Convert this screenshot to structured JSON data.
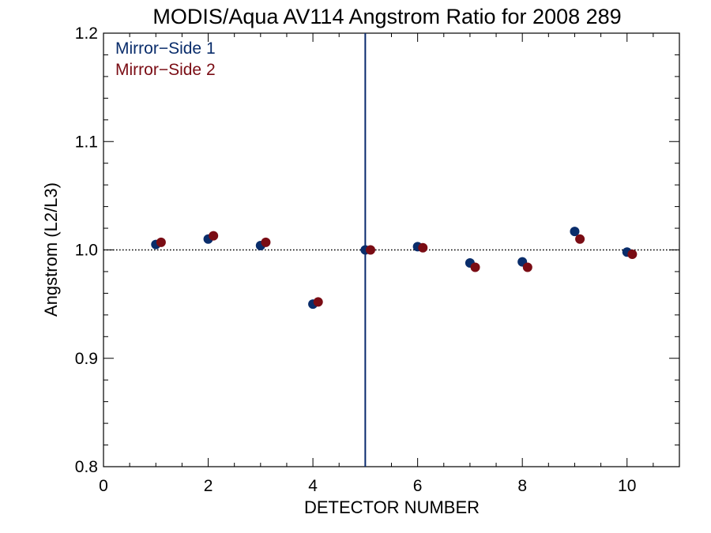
{
  "chart_data": {
    "type": "scatter",
    "title": "MODIS/Aqua AV114 Angstrom Ratio for 2008 289",
    "xlabel": "DETECTOR NUMBER",
    "ylabel": "Angstrom (L2/L3)",
    "xlim": [
      0,
      11
    ],
    "ylim": [
      0.8,
      1.2
    ],
    "x_ticks": [
      0,
      2,
      4,
      6,
      8,
      10
    ],
    "x_tick_labels": [
      "0",
      "2",
      "4",
      "6",
      "8",
      "10"
    ],
    "y_ticks": [
      0.8,
      0.9,
      1.0,
      1.1,
      1.2
    ],
    "y_tick_labels": [
      "0.8",
      "0.9",
      "1.0",
      "1.1",
      "1.2"
    ],
    "reference_line_y": 1.0,
    "vertical_line_x": 5,
    "vertical_line_color": "#0a2a6e",
    "legend_position": "top-left",
    "series": [
      {
        "name": "Mirror−Side 1",
        "color": "#0a2d6b",
        "x": [
          1,
          2,
          3,
          4,
          5,
          6,
          7,
          8,
          9,
          10
        ],
        "y": [
          1.005,
          1.01,
          1.004,
          0.95,
          1.0,
          1.003,
          0.988,
          0.989,
          1.017,
          0.998
        ]
      },
      {
        "name": "Mirror−Side 2",
        "color": "#7a0c14",
        "x": [
          1.1,
          2.1,
          3.1,
          4.1,
          5.1,
          6.1,
          7.1,
          8.1,
          9.1,
          10.1
        ],
        "y": [
          1.007,
          1.013,
          1.007,
          0.952,
          1.0,
          1.002,
          0.984,
          0.984,
          1.01,
          0.996
        ]
      }
    ]
  }
}
